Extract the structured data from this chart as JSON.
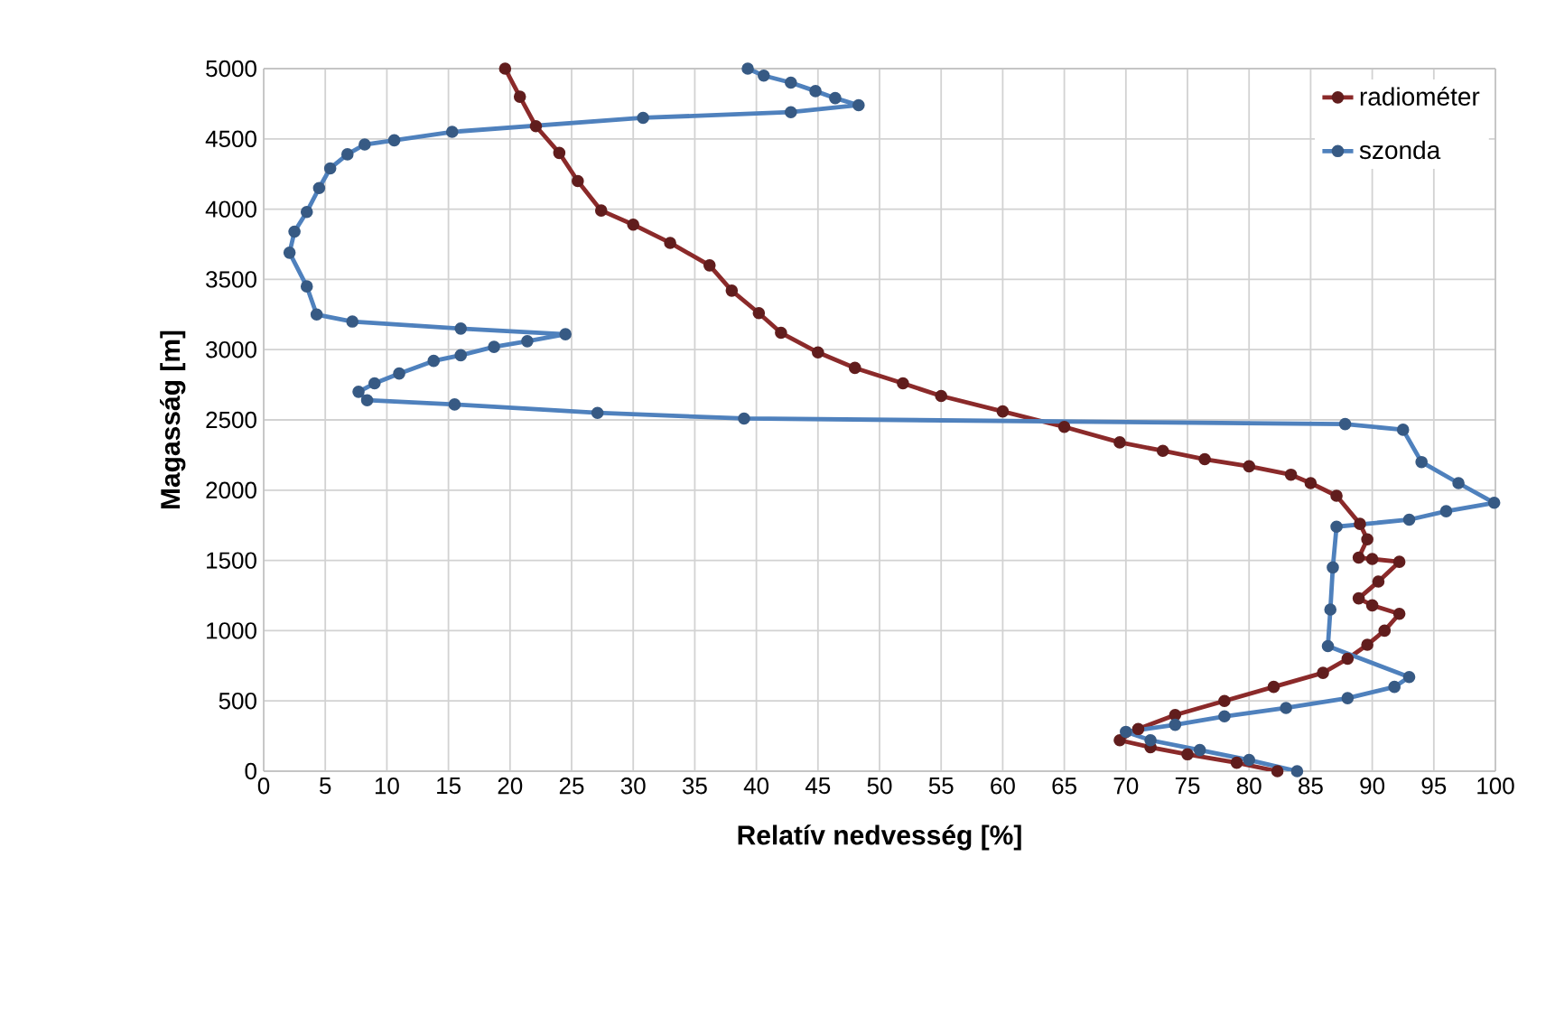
{
  "chart_data": {
    "type": "line",
    "xlabel": "Relatív nedvesség [%]",
    "ylabel": "Magasság [m]",
    "xlim": [
      0,
      100
    ],
    "xticks": [
      0,
      5,
      10,
      15,
      20,
      25,
      30,
      35,
      40,
      45,
      50,
      55,
      60,
      65,
      70,
      75,
      80,
      85,
      90,
      95,
      100
    ],
    "ylim": [
      0,
      5000
    ],
    "yticks": [
      0,
      500,
      1000,
      1500,
      2000,
      2500,
      3000,
      3500,
      4000,
      4500,
      5000
    ],
    "grid": true,
    "legend": "top right",
    "marker": "circle",
    "line_style": "solid",
    "series": [
      {
        "name": "radiométer",
        "color": "#8b2a2a",
        "x": [
          82.3,
          79,
          75,
          72,
          69.5,
          71,
          74,
          78,
          82,
          86,
          88,
          89.6,
          91,
          92.2,
          90,
          88.9,
          90.5,
          92.2,
          90,
          88.9,
          89.6,
          89,
          87.1,
          85,
          83.4,
          80,
          76.4,
          73,
          69.5,
          65,
          60,
          55,
          51.9,
          48,
          45,
          42,
          40.2,
          38,
          36.2,
          33,
          30,
          27.4,
          25.5,
          24,
          22.1,
          20.8,
          19.6
        ],
        "values": [
          0,
          60,
          120,
          170,
          220,
          300,
          400,
          500,
          600,
          700,
          800,
          900,
          1000,
          1120,
          1180,
          1230,
          1350,
          1490,
          1510,
          1520,
          1650,
          1760,
          1960,
          2050,
          2110,
          2170,
          2220,
          2280,
          2340,
          2450,
          2560,
          2670,
          2760,
          2870,
          2980,
          3120,
          3260,
          3420,
          3600,
          3760,
          3890,
          3990,
          4200,
          4400,
          4590,
          4800,
          5000
        ]
      },
      {
        "name": "szonda",
        "color": "#4f81bd",
        "x": [
          83.9,
          80,
          76,
          72,
          70,
          74,
          78,
          83,
          88,
          91.8,
          93,
          86.4,
          86.6,
          86.8,
          87.1,
          93,
          96,
          99.9,
          97,
          94,
          92.5,
          87.8,
          39,
          27.1,
          15.5,
          8.4,
          7.7,
          9,
          11,
          13.8,
          16,
          18.7,
          21.4,
          24.5,
          16,
          7.2,
          4.3,
          3.5,
          2.1,
          2.5,
          3.5,
          4.5,
          5.4,
          6.8,
          8.2,
          10.6,
          15.3,
          30.8,
          42.8,
          48.3,
          46.4,
          44.8,
          42.8,
          40.6,
          39.3
        ],
        "values": [
          0,
          80,
          150,
          220,
          280,
          330,
          390,
          450,
          520,
          600,
          670,
          890,
          1150,
          1450,
          1740,
          1790,
          1850,
          1910,
          2050,
          2200,
          2430,
          2470,
          2510,
          2550,
          2610,
          2640,
          2700,
          2760,
          2830,
          2920,
          2960,
          3020,
          3060,
          3110,
          3150,
          3200,
          3250,
          3450,
          3690,
          3840,
          3980,
          4150,
          4290,
          4390,
          4460,
          4490,
          4550,
          4650,
          4690,
          4740,
          4790,
          4840,
          4900,
          4950,
          5000
        ]
      }
    ]
  }
}
